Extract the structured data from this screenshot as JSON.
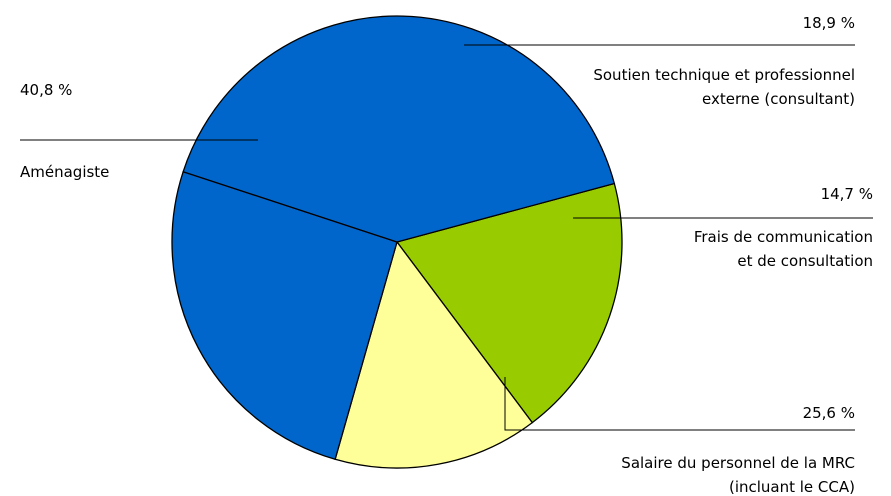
{
  "chart_data": {
    "type": "pie",
    "title": "",
    "slices": [
      {
        "name": "Soutien technique et professionnel externe (consultant)",
        "label_lines": [
          "Soutien technique et professionnel",
          "externe (consultant)"
        ],
        "value": 18.9,
        "value_label": "18,9 %",
        "color": "#99CC00"
      },
      {
        "name": "Frais de communication et de consultation",
        "label_lines": [
          "Frais de communication",
          "et de consultation"
        ],
        "value": 14.7,
        "value_label": "14,7 %",
        "color": "#FFFF99"
      },
      {
        "name": "Salaire du personnel de la MRC (incluant le CCA)",
        "label_lines": [
          "Salaire du personnel de la MRC",
          "(incluant le CCA)"
        ],
        "value": 25.6,
        "value_label": "25,6 %",
        "color": "#0066CC"
      },
      {
        "name": "Aménagiste",
        "label_lines": [
          "Aménagiste"
        ],
        "value": 40.8,
        "value_label": "40,8 %",
        "color": "#0066CC"
      }
    ],
    "start_angle_deg": -15,
    "direction": "clockwise",
    "legend": "none"
  }
}
